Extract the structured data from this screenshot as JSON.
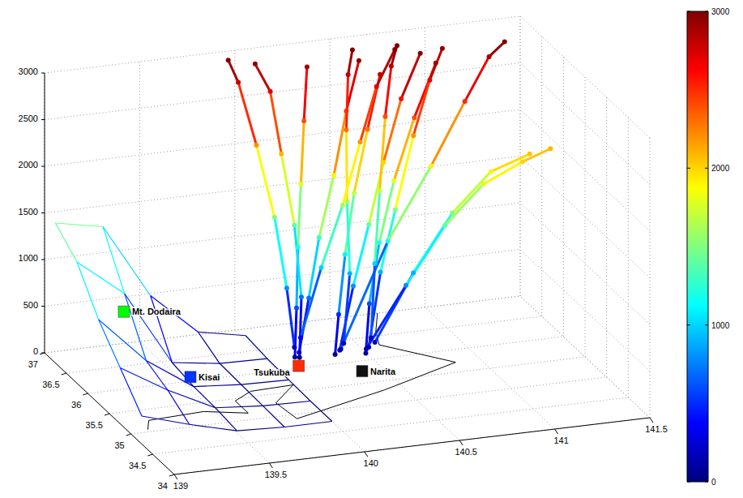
{
  "chart_data": {
    "type": "scatter3d",
    "xlim": [
      139,
      141.5
    ],
    "xticks": [
      139,
      139.5,
      140,
      140.5,
      141,
      141.5
    ],
    "ylim": [
      34,
      37
    ],
    "yticks": [
      34,
      34.5,
      35,
      35.5,
      36,
      36.5,
      37
    ],
    "zlim": [
      0,
      3000
    ],
    "zticks": [
      0,
      500,
      1000,
      1500,
      2000,
      2500,
      3000
    ],
    "grid": true,
    "colorbar": {
      "range": [
        0,
        3000
      ],
      "ticks": [
        0,
        1000,
        2000,
        3000
      ]
    },
    "stations": [
      {
        "label": "Mt. Dodaira",
        "color": "#00ff00",
        "marker": "square",
        "x": 139.19,
        "y": 36.0,
        "z": 830
      },
      {
        "label": "Kisai",
        "color": "#0033ff",
        "marker": "square",
        "x": 139.56,
        "y": 36.09,
        "z": 0
      },
      {
        "label": "Tsukuba",
        "color": "#ff2a00",
        "marker": "square",
        "x": 140.12,
        "y": 36.05,
        "z": 0
      },
      {
        "label": "Narita",
        "color": "#111111",
        "marker": "square",
        "x": 140.39,
        "y": 35.77,
        "z": 0
      }
    ],
    "terrain": {
      "x": [
        139.0,
        139.25,
        139.5,
        139.75,
        140.0
      ],
      "y": [
        34.75,
        35.25,
        35.75,
        36.25,
        36.75
      ],
      "z": [
        [
          300,
          150,
          20,
          0,
          0
        ],
        [
          600,
          300,
          50,
          10,
          0
        ],
        [
          900,
          400,
          60,
          20,
          10
        ],
        [
          1300,
          900,
          100,
          30,
          20
        ],
        [
          1500,
          1400,
          600,
          150,
          50
        ]
      ]
    },
    "coastline": [
      [
        140.75,
        37.0
      ],
      [
        140.65,
        36.6
      ],
      [
        140.6,
        36.3
      ],
      [
        140.87,
        35.72
      ],
      [
        140.4,
        35.3
      ],
      [
        139.85,
        34.9
      ],
      [
        139.83,
        35.3
      ],
      [
        140.0,
        35.65
      ],
      [
        139.77,
        35.62
      ],
      [
        139.65,
        35.45
      ],
      [
        139.65,
        35.15
      ],
      [
        139.45,
        35.3
      ],
      [
        139.15,
        35.25
      ],
      [
        139.1,
        35.05
      ]
    ],
    "trajectories": [
      [
        [
          140.1,
          36.05,
          100
        ],
        [
          140.12,
          36.1,
          600
        ],
        [
          140.15,
          36.2,
          1200
        ],
        [
          140.2,
          36.35,
          1800
        ],
        [
          140.25,
          36.5,
          2400
        ],
        [
          140.3,
          36.65,
          2900
        ]
      ],
      [
        [
          140.12,
          36.04,
          150
        ],
        [
          140.18,
          36.08,
          700
        ],
        [
          140.25,
          36.15,
          1300
        ],
        [
          140.35,
          36.25,
          1900
        ],
        [
          140.45,
          36.4,
          2500
        ],
        [
          140.55,
          36.55,
          2950
        ]
      ],
      [
        [
          140.3,
          36.0,
          100
        ],
        [
          140.33,
          36.05,
          500
        ],
        [
          140.38,
          36.12,
          1100
        ],
        [
          140.45,
          36.22,
          1700
        ],
        [
          140.55,
          36.35,
          2300
        ],
        [
          140.65,
          36.5,
          2800
        ]
      ],
      [
        [
          140.32,
          35.98,
          150
        ],
        [
          140.4,
          36.02,
          800
        ],
        [
          140.5,
          36.1,
          1400
        ],
        [
          140.6,
          36.2,
          2000
        ],
        [
          140.72,
          36.32,
          2600
        ],
        [
          140.85,
          36.45,
          3000
        ]
      ],
      [
        [
          140.45,
          35.95,
          100
        ],
        [
          140.48,
          36.0,
          600
        ],
        [
          140.55,
          36.08,
          1200
        ],
        [
          140.65,
          36.18,
          1800
        ],
        [
          140.78,
          36.28,
          2400
        ],
        [
          140.92,
          36.4,
          2900
        ]
      ],
      [
        [
          140.47,
          35.97,
          150
        ],
        [
          140.55,
          36.05,
          900
        ],
        [
          140.65,
          36.15,
          1500
        ],
        [
          140.78,
          36.3,
          2200
        ],
        [
          140.9,
          36.45,
          2700
        ],
        [
          141.0,
          36.6,
          2950
        ]
      ],
      [
        [
          140.1,
          36.06,
          200
        ],
        [
          140.08,
          36.15,
          800
        ],
        [
          140.05,
          36.3,
          1500
        ],
        [
          140.0,
          36.5,
          2200
        ],
        [
          139.95,
          36.7,
          2800
        ],
        [
          139.92,
          36.8,
          3000
        ]
      ],
      [
        [
          140.12,
          36.03,
          100
        ],
        [
          140.15,
          36.12,
          700
        ],
        [
          140.15,
          36.28,
          1400
        ],
        [
          140.12,
          36.45,
          2100
        ],
        [
          140.1,
          36.62,
          2700
        ],
        [
          140.05,
          36.75,
          2950
        ]
      ],
      [
        [
          140.5,
          35.96,
          200
        ],
        [
          140.7,
          35.95,
          900
        ],
        [
          140.9,
          35.93,
          1500
        ],
        [
          141.1,
          35.92,
          1900
        ],
        [
          141.3,
          35.9,
          2050
        ]
      ],
      [
        [
          140.45,
          35.94,
          150
        ],
        [
          140.65,
          35.9,
          800
        ],
        [
          140.85,
          35.88,
          1400
        ],
        [
          141.05,
          35.87,
          1800
        ],
        [
          141.25,
          35.85,
          2000
        ],
        [
          141.4,
          35.86,
          2100
        ]
      ],
      [
        [
          140.33,
          36.0,
          150
        ],
        [
          140.6,
          36.1,
          1200
        ],
        [
          140.85,
          36.2,
          1900
        ],
        [
          141.05,
          36.3,
          2500
        ],
        [
          141.2,
          36.4,
          2900
        ],
        [
          141.3,
          36.48,
          3000
        ]
      ],
      [
        [
          140.35,
          36.02,
          200
        ],
        [
          140.4,
          36.1,
          900
        ],
        [
          140.42,
          36.25,
          1600
        ],
        [
          140.45,
          36.4,
          2300
        ],
        [
          140.5,
          36.58,
          2800
        ],
        [
          140.55,
          36.7,
          3000
        ]
      ],
      [
        [
          140.13,
          36.05,
          300
        ],
        [
          140.25,
          36.1,
          1000
        ],
        [
          140.38,
          36.18,
          1600
        ],
        [
          140.5,
          36.3,
          2200
        ],
        [
          140.62,
          36.45,
          2700
        ],
        [
          140.75,
          36.6,
          3000
        ]
      ],
      [
        [
          140.48,
          35.96,
          250
        ],
        [
          140.52,
          36.05,
          1000
        ],
        [
          140.58,
          36.2,
          1700
        ],
        [
          140.65,
          36.38,
          2400
        ],
        [
          140.72,
          36.55,
          2850
        ],
        [
          140.78,
          36.68,
          3000
        ]
      ]
    ]
  }
}
